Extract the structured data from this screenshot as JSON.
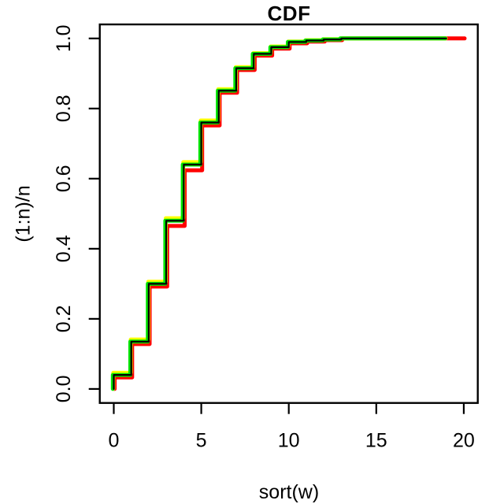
{
  "title": "CDF",
  "x_axis": {
    "label": "sort(w)",
    "tick_labels": [
      "0",
      "5",
      "10",
      "15",
      "20"
    ],
    "tick_values": [
      0,
      5,
      10,
      15,
      20
    ]
  },
  "y_axis": {
    "label": "(1:n)/n",
    "tick_labels": [
      "0.0",
      "0.2",
      "0.4",
      "0.6",
      "0.8",
      "1.0"
    ],
    "tick_values": [
      0,
      0.2,
      0.4,
      0.6,
      0.8,
      1.0
    ]
  },
  "colors": {
    "frame": "#000000",
    "background": "#ffffff"
  },
  "chart_data": {
    "type": "line",
    "subtype": "ecdf-step",
    "title": "CDF",
    "xlabel": "sort(w)",
    "ylabel": "(1:n)/n",
    "xlim": [
      0,
      20
    ],
    "ylim": [
      0,
      1
    ],
    "plot_range_x": [
      -0.8,
      20.8
    ],
    "plot_range_y": [
      -0.04,
      1.04
    ],
    "grid": false,
    "legend": "none",
    "step_x_start": 0,
    "series": [
      {
        "name": "red-ecdf",
        "color": "#ff0000",
        "stroke_width": 5,
        "dx": 0.05,
        "x_end": 20,
        "values": [
          0.033,
          0.128,
          0.292,
          0.465,
          0.624,
          0.752,
          0.845,
          0.91,
          0.951,
          0.971,
          0.986,
          0.991,
          0.995,
          1.0
        ]
      },
      {
        "name": "yellow-ecdf",
        "color": "#ffff00",
        "stroke_width": 5,
        "dx": -0.03,
        "x_end": 19,
        "values": [
          0.046,
          0.141,
          0.306,
          0.487,
          0.647,
          0.766,
          0.855,
          0.918,
          0.958,
          0.977,
          0.991,
          0.995,
          0.998,
          1.0
        ]
      },
      {
        "name": "green-ecdf",
        "color": "#00e400",
        "stroke_width": 5,
        "dx": -0.055,
        "x_end": 19,
        "values": [
          0.04,
          0.135,
          0.3,
          0.48,
          0.64,
          0.76,
          0.851,
          0.915,
          0.956,
          0.975,
          0.99,
          0.994,
          0.997,
          1.0
        ]
      },
      {
        "name": "black-ecdf",
        "color": "#000000",
        "stroke_width": 2.2,
        "dx": 0,
        "x_end": 19,
        "values": [
          0.04,
          0.135,
          0.3,
          0.48,
          0.64,
          0.76,
          0.851,
          0.915,
          0.956,
          0.975,
          0.99,
          0.994,
          0.997,
          1.0
        ]
      }
    ]
  }
}
